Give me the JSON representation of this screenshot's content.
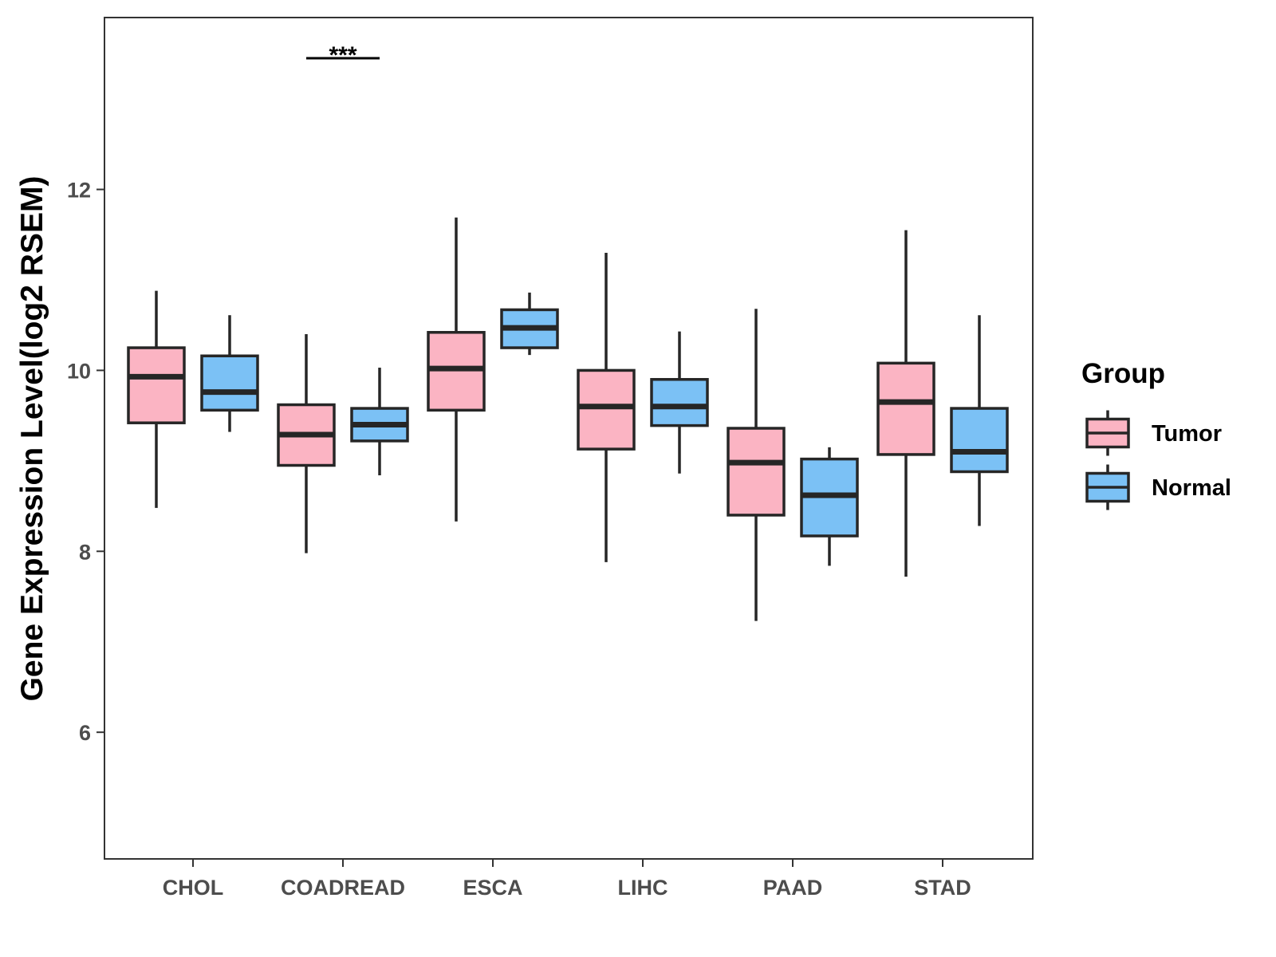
{
  "chart_data": {
    "type": "boxplot",
    "title": "",
    "xlabel": "",
    "ylabel": "Gene Expression Level(log2 RSEM)",
    "ylim": [
      4.6,
      13.9
    ],
    "yticks": [
      6,
      8,
      10,
      12
    ],
    "ytick_labels": [
      "6",
      "8",
      "10",
      "12"
    ],
    "grid": false,
    "categories": [
      "CHOL",
      "COADREAD",
      "ESCA",
      "LIHC",
      "PAAD",
      "STAD"
    ],
    "legend": {
      "title": "Group",
      "position": "right",
      "entries": [
        "Tumor",
        "Normal"
      ]
    },
    "series": [
      {
        "name": "Tumor",
        "color": "#fbb4c3",
        "boxes": [
          {
            "whisker_low": 8.48,
            "q1": 9.42,
            "median": 9.93,
            "q3": 10.25,
            "whisker_high": 10.88
          },
          {
            "whisker_low": 7.98,
            "q1": 8.95,
            "median": 9.29,
            "q3": 9.62,
            "whisker_high": 10.4
          },
          {
            "whisker_low": 8.33,
            "q1": 9.56,
            "median": 10.02,
            "q3": 10.42,
            "whisker_high": 11.69
          },
          {
            "whisker_low": 7.88,
            "q1": 9.13,
            "median": 9.6,
            "q3": 10.0,
            "whisker_high": 11.3
          },
          {
            "whisker_low": 7.23,
            "q1": 8.4,
            "median": 8.98,
            "q3": 9.36,
            "whisker_high": 10.68
          },
          {
            "whisker_low": 7.72,
            "q1": 9.07,
            "median": 9.65,
            "q3": 10.08,
            "whisker_high": 11.55
          }
        ]
      },
      {
        "name": "Normal",
        "color": "#7bc1f5",
        "boxes": [
          {
            "whisker_low": 9.32,
            "q1": 9.56,
            "median": 9.76,
            "q3": 10.16,
            "whisker_high": 10.61
          },
          {
            "whisker_low": 8.84,
            "q1": 9.22,
            "median": 9.4,
            "q3": 9.58,
            "whisker_high": 10.03
          },
          {
            "whisker_low": 10.17,
            "q1": 10.25,
            "median": 10.47,
            "q3": 10.67,
            "whisker_high": 10.86
          },
          {
            "whisker_low": 8.86,
            "q1": 9.39,
            "median": 9.6,
            "q3": 9.9,
            "whisker_high": 10.43
          },
          {
            "whisker_low": 7.84,
            "q1": 8.17,
            "median": 8.62,
            "q3": 9.02,
            "whisker_high": 9.15
          },
          {
            "whisker_low": 8.28,
            "q1": 8.88,
            "median": 9.1,
            "q3": 9.58,
            "whisker_high": 10.61
          }
        ]
      }
    ],
    "annotations": [
      {
        "category": "COADREAD",
        "text": "***",
        "y": 13.45
      }
    ],
    "colors": {
      "box_stroke": "#262626",
      "axis": "#333333",
      "tick_text": "#4d4d4d"
    }
  }
}
